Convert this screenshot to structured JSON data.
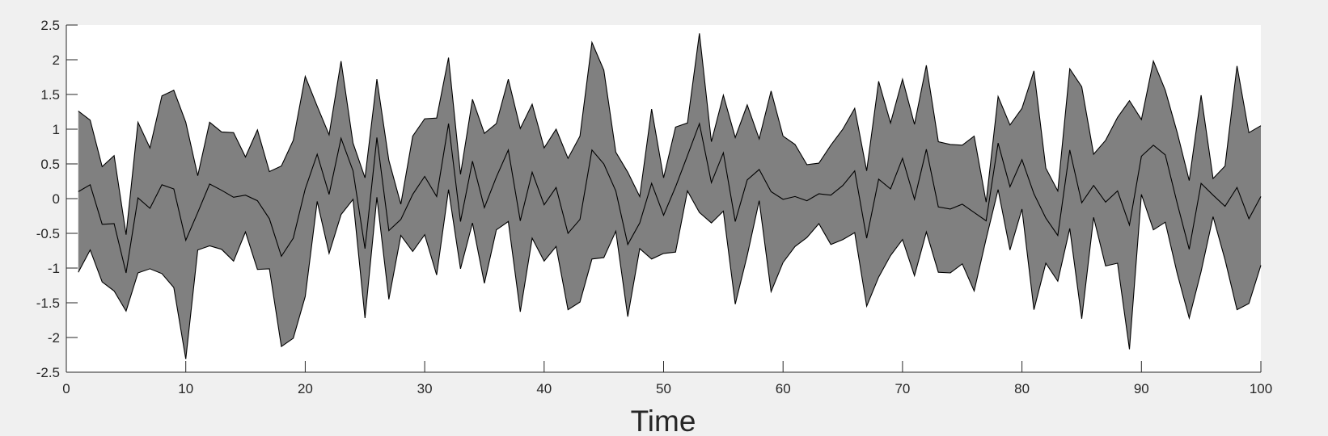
{
  "chart_data": {
    "type": "area",
    "title": "",
    "xlabel": "Time",
    "ylabel": "",
    "xlim": [
      0,
      100
    ],
    "ylim": [
      -2.5,
      2.5
    ],
    "xticks": [
      0,
      10,
      20,
      30,
      40,
      50,
      60,
      70,
      80,
      90,
      100
    ],
    "yticks": [
      -2.5,
      -2,
      -1.5,
      -1,
      -0.5,
      0,
      0.5,
      1,
      1.5,
      2,
      2.5
    ],
    "grid": false,
    "legend": "none",
    "fill_color": "#808080",
    "line_color": "#000000",
    "x": [
      1,
      2,
      3,
      4,
      5,
      6,
      7,
      8,
      9,
      10,
      11,
      12,
      13,
      14,
      15,
      16,
      17,
      18,
      19,
      20,
      21,
      22,
      23,
      24,
      25,
      26,
      27,
      28,
      29,
      30,
      31,
      32,
      33,
      34,
      35,
      36,
      37,
      38,
      39,
      40,
      41,
      42,
      43,
      44,
      45,
      46,
      47,
      48,
      49,
      50,
      51,
      52,
      53,
      54,
      55,
      56,
      57,
      58,
      59,
      60,
      61,
      62,
      63,
      64,
      65,
      66,
      67,
      68,
      69,
      70,
      71,
      72,
      73,
      74,
      75,
      76,
      77,
      78,
      79,
      80,
      81,
      82,
      83,
      84,
      85,
      86,
      87,
      88,
      89,
      90,
      91,
      92,
      93,
      94,
      95,
      96,
      97,
      98,
      99,
      100
    ],
    "series": [
      {
        "values": [
          1.26,
          1.13,
          0.46,
          0.62,
          -0.52,
          1.1,
          0.73,
          1.48,
          1.56,
          1.1,
          0.33,
          1.1,
          0.96,
          0.95,
          0.6,
          0.99,
          0.39,
          0.47,
          0.84,
          1.76,
          1.33,
          0.92,
          1.98,
          0.8,
          0.3,
          1.72,
          0.55,
          -0.08,
          0.9,
          1.15,
          1.16,
          2.03,
          0.35,
          1.43,
          0.94,
          1.08,
          1.72,
          1.01,
          1.36,
          0.73,
          1.0,
          0.58,
          0.9,
          2.25,
          1.85,
          0.67,
          0.38,
          0.03,
          1.29,
          0.3,
          1.03,
          1.09,
          2.38,
          0.82,
          1.49,
          0.88,
          1.35,
          0.86,
          1.55,
          0.9,
          0.78,
          0.49,
          0.51,
          0.77,
          1.0,
          1.3,
          0.4,
          1.69,
          1.09,
          1.72,
          1.07,
          1.92,
          0.82,
          0.78,
          0.77,
          0.9,
          -0.05,
          1.47,
          1.06,
          1.3,
          1.84,
          0.44,
          0.11,
          1.87,
          1.61,
          0.64,
          0.84,
          1.17,
          1.41,
          1.14,
          1.98,
          1.56,
          0.95,
          0.26,
          1.49,
          0.29,
          0.47,
          1.91,
          0.95,
          1.05
        ]
      },
      {
        "values": [
          0.1,
          0.2,
          -0.37,
          -0.36,
          -1.07,
          0.01,
          -0.14,
          0.2,
          0.14,
          -0.6,
          -0.2,
          0.21,
          0.12,
          0.02,
          0.05,
          -0.03,
          -0.29,
          -0.83,
          -0.57,
          0.14,
          0.64,
          0.06,
          0.87,
          0.4,
          -0.72,
          0.88,
          -0.46,
          -0.3,
          0.06,
          0.32,
          0.03,
          1.08,
          -0.33,
          0.54,
          -0.13,
          0.31,
          0.7,
          -0.32,
          0.38,
          -0.09,
          0.16,
          -0.5,
          -0.3,
          0.7,
          0.5,
          0.11,
          -0.66,
          -0.35,
          0.22,
          -0.24,
          0.17,
          0.62,
          1.08,
          0.23,
          0.66,
          -0.33,
          0.27,
          0.42,
          0.1,
          -0.01,
          0.03,
          -0.03,
          0.07,
          0.05,
          0.19,
          0.4,
          -0.57,
          0.28,
          0.14,
          0.58,
          -0.01,
          0.71,
          -0.12,
          -0.15,
          -0.08,
          -0.2,
          -0.32,
          0.8,
          0.17,
          0.56,
          0.07,
          -0.28,
          -0.53,
          0.7,
          -0.06,
          0.19,
          -0.05,
          0.11,
          -0.38,
          0.61,
          0.77,
          0.63,
          -0.07,
          -0.73,
          0.22,
          0.05,
          -0.11,
          0.16,
          -0.29,
          0.03
        ]
      },
      {
        "values": [
          -1.06,
          -0.74,
          -1.2,
          -1.33,
          -1.62,
          -1.07,
          -1.01,
          -1.08,
          -1.28,
          -2.31,
          -0.74,
          -0.68,
          -0.73,
          -0.9,
          -0.48,
          -1.02,
          -1.01,
          -2.13,
          -2.01,
          -1.41,
          -0.04,
          -0.79,
          -0.23,
          -0.01,
          -1.72,
          0.02,
          -1.45,
          -0.53,
          -0.76,
          -0.52,
          -1.1,
          0.13,
          -1.01,
          -0.35,
          -1.22,
          -0.45,
          -0.33,
          -1.63,
          -0.57,
          -0.9,
          -0.69,
          -1.6,
          -1.49,
          -0.87,
          -0.85,
          -0.47,
          -1.7,
          -0.72,
          -0.87,
          -0.79,
          -0.77,
          0.11,
          -0.2,
          -0.35,
          -0.18,
          -1.52,
          -0.82,
          -0.03,
          -1.34,
          -0.92,
          -0.69,
          -0.56,
          -0.36,
          -0.66,
          -0.59,
          -0.49,
          -1.55,
          -1.13,
          -0.82,
          -0.59,
          -1.11,
          -0.48,
          -1.06,
          -1.07,
          -0.94,
          -1.33,
          -0.58,
          0.13,
          -0.74,
          -0.15,
          -1.6,
          -0.93,
          -1.19,
          -0.43,
          -1.73,
          -0.27,
          -0.97,
          -0.93,
          -2.17,
          0.06,
          -0.45,
          -0.34,
          -1.08,
          -1.72,
          -1.05,
          -0.26,
          -0.88,
          -1.6,
          -1.51,
          -0.96
        ]
      }
    ]
  }
}
